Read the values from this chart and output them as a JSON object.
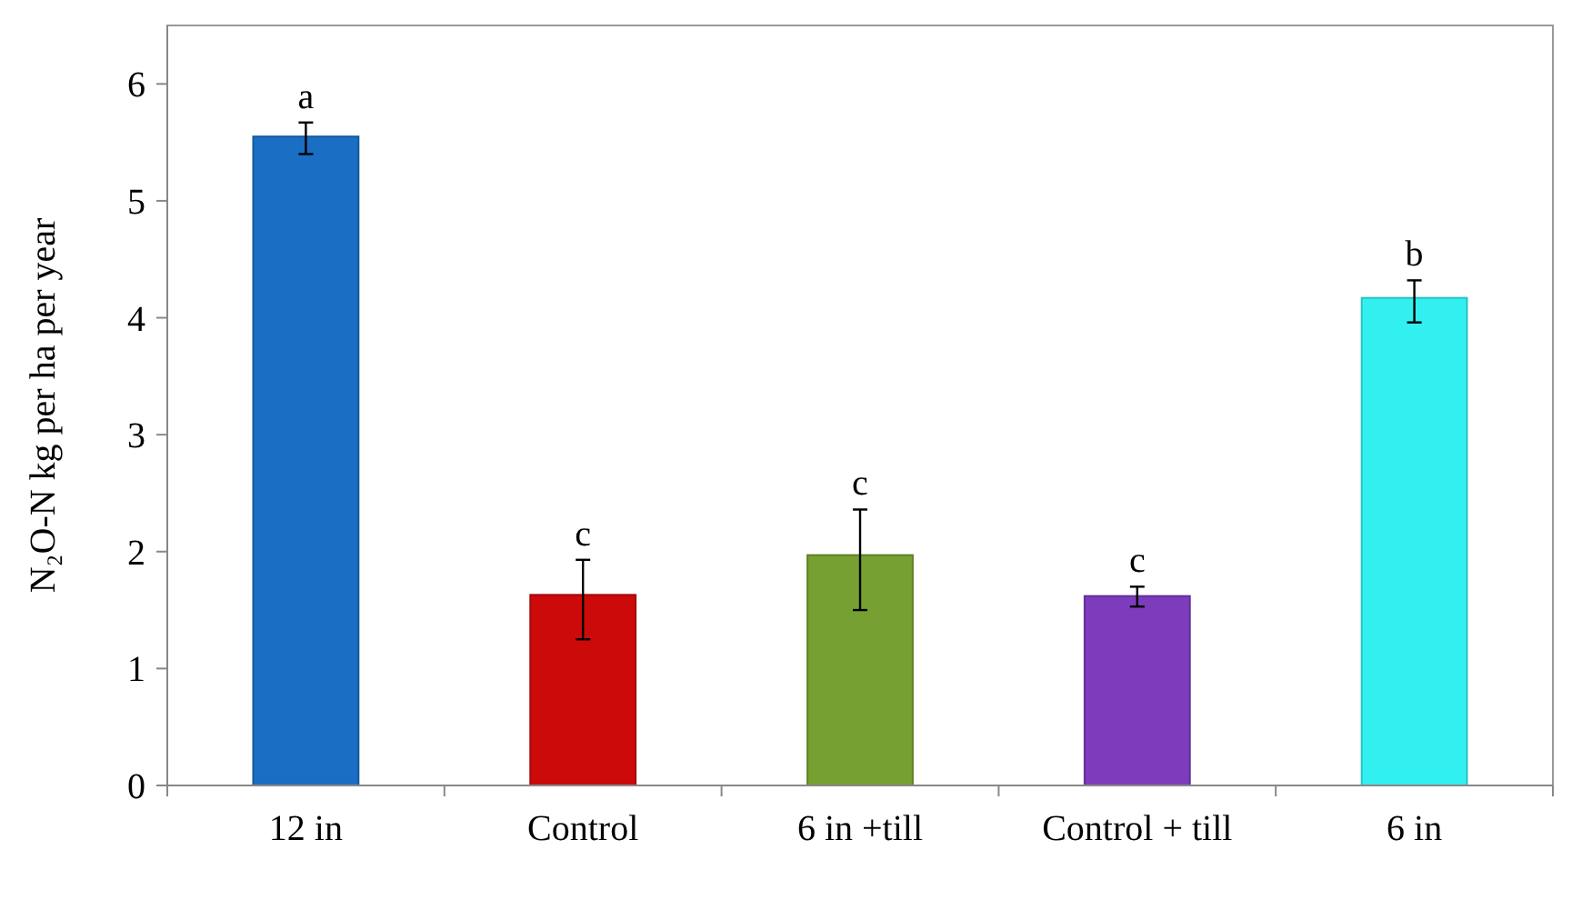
{
  "chart_data": {
    "type": "bar",
    "ylabel": "N₂O-N kg  per ha per year",
    "categories": [
      "12 in",
      "Control",
      "6 in +till",
      "Control + till",
      "6 in"
    ],
    "values": [
      5.55,
      1.63,
      1.97,
      1.62,
      4.17
    ],
    "colors": [
      "#1a6ec4",
      "#cc0a0a",
      "#76a032",
      "#7c3cbc",
      "#33f0f0"
    ],
    "errors": [
      [
        5.4,
        5.67
      ],
      [
        1.25,
        1.93
      ],
      [
        1.5,
        2.36
      ],
      [
        1.53,
        1.7
      ],
      [
        3.96,
        4.32
      ]
    ],
    "annotations": [
      {
        "text": "a",
        "x": "12 in",
        "y": 5.67
      },
      {
        "text": "c",
        "x": "Control",
        "y": 1.93
      },
      {
        "text": "c",
        "x": "6 in +till",
        "y": 2.36
      },
      {
        "text": "c",
        "x": "Control + till",
        "y": 1.7
      },
      {
        "text": "b",
        "x": "6 in",
        "y": 4.32
      }
    ],
    "ylim": [
      0,
      6.5
    ],
    "yticks": [
      0,
      1,
      2,
      3,
      4,
      5,
      6
    ],
    "grid": false
  }
}
